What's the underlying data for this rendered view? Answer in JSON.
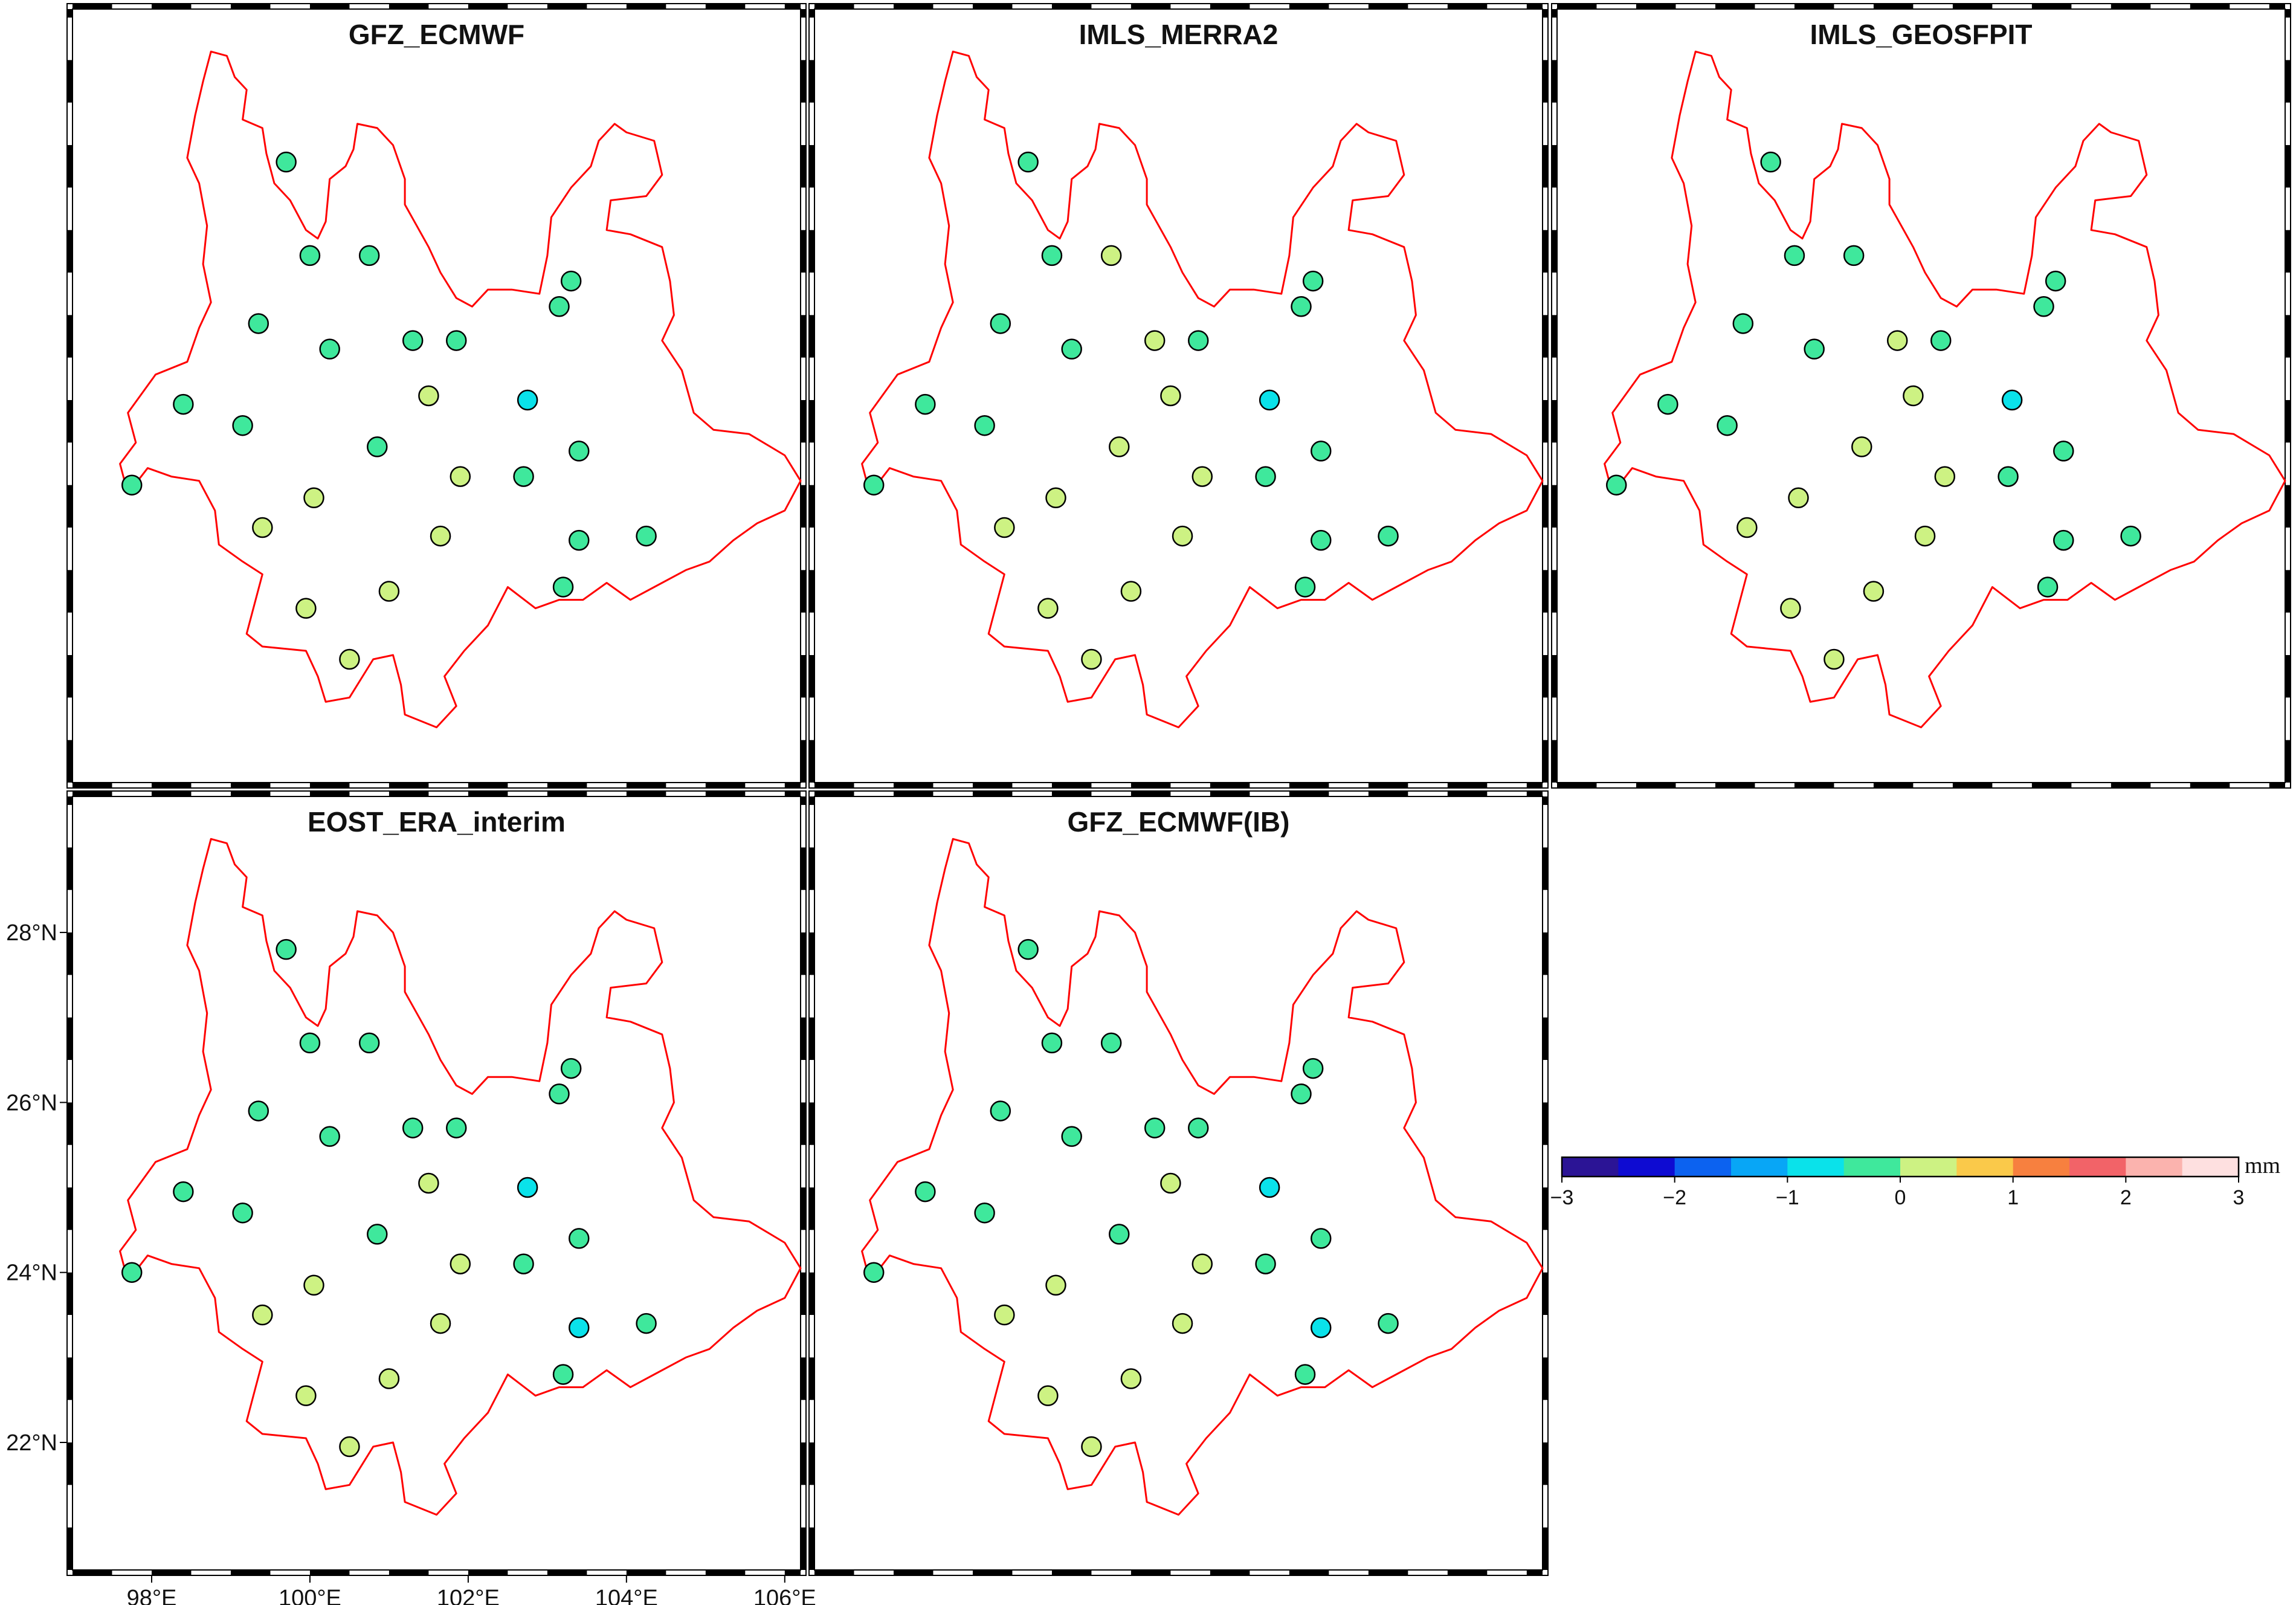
{
  "figure": {
    "panels": [
      {
        "title": "GFZ_ECMWF",
        "stations": [
          {
            "lon": 99.7,
            "lat": 27.8,
            "v": -0.2
          },
          {
            "lon": 100.0,
            "lat": 26.7,
            "v": -0.2
          },
          {
            "lon": 100.75,
            "lat": 26.7,
            "v": -0.2
          },
          {
            "lon": 103.3,
            "lat": 26.4,
            "v": -0.2
          },
          {
            "lon": 103.15,
            "lat": 26.1,
            "v": -0.2
          },
          {
            "lon": 99.35,
            "lat": 25.9,
            "v": -0.2
          },
          {
            "lon": 100.25,
            "lat": 25.6,
            "v": -0.2
          },
          {
            "lon": 101.3,
            "lat": 25.7,
            "v": -0.2
          },
          {
            "lon": 101.85,
            "lat": 25.7,
            "v": -0.2
          },
          {
            "lon": 101.5,
            "lat": 25.05,
            "v": 0.2
          },
          {
            "lon": 102.75,
            "lat": 25.0,
            "v": -0.7
          },
          {
            "lon": 98.4,
            "lat": 24.95,
            "v": -0.2
          },
          {
            "lon": 99.15,
            "lat": 24.7,
            "v": -0.2
          },
          {
            "lon": 100.85,
            "lat": 24.45,
            "v": -0.2
          },
          {
            "lon": 103.4,
            "lat": 24.4,
            "v": -0.2
          },
          {
            "lon": 101.9,
            "lat": 24.1,
            "v": 0.2
          },
          {
            "lon": 102.7,
            "lat": 24.1,
            "v": -0.2
          },
          {
            "lon": 97.75,
            "lat": 24.0,
            "v": -0.2
          },
          {
            "lon": 100.05,
            "lat": 23.85,
            "v": 0.2
          },
          {
            "lon": 99.4,
            "lat": 23.5,
            "v": 0.2
          },
          {
            "lon": 101.65,
            "lat": 23.4,
            "v": 0.2
          },
          {
            "lon": 103.4,
            "lat": 23.35,
            "v": -0.2
          },
          {
            "lon": 104.25,
            "lat": 23.4,
            "v": -0.2
          },
          {
            "lon": 103.2,
            "lat": 22.8,
            "v": -0.2
          },
          {
            "lon": 99.95,
            "lat": 22.55,
            "v": 0.2
          },
          {
            "lon": 101.0,
            "lat": 22.75,
            "v": 0.2
          },
          {
            "lon": 100.5,
            "lat": 21.95,
            "v": 0.2
          }
        ]
      },
      {
        "title": "IMLS_MERRA2",
        "stations": [
          {
            "lon": 99.7,
            "lat": 27.8,
            "v": -0.2
          },
          {
            "lon": 100.0,
            "lat": 26.7,
            "v": -0.2
          },
          {
            "lon": 100.75,
            "lat": 26.7,
            "v": 0.2
          },
          {
            "lon": 103.3,
            "lat": 26.4,
            "v": -0.2
          },
          {
            "lon": 103.15,
            "lat": 26.1,
            "v": -0.2
          },
          {
            "lon": 99.35,
            "lat": 25.9,
            "v": -0.2
          },
          {
            "lon": 100.25,
            "lat": 25.6,
            "v": -0.2
          },
          {
            "lon": 101.3,
            "lat": 25.7,
            "v": 0.2
          },
          {
            "lon": 101.85,
            "lat": 25.7,
            "v": -0.2
          },
          {
            "lon": 101.5,
            "lat": 25.05,
            "v": 0.2
          },
          {
            "lon": 102.75,
            "lat": 25.0,
            "v": -0.7
          },
          {
            "lon": 98.4,
            "lat": 24.95,
            "v": -0.2
          },
          {
            "lon": 99.15,
            "lat": 24.7,
            "v": -0.2
          },
          {
            "lon": 100.85,
            "lat": 24.45,
            "v": 0.2
          },
          {
            "lon": 103.4,
            "lat": 24.4,
            "v": -0.2
          },
          {
            "lon": 101.9,
            "lat": 24.1,
            "v": 0.2
          },
          {
            "lon": 102.7,
            "lat": 24.1,
            "v": -0.2
          },
          {
            "lon": 97.75,
            "lat": 24.0,
            "v": -0.2
          },
          {
            "lon": 100.05,
            "lat": 23.85,
            "v": 0.2
          },
          {
            "lon": 99.4,
            "lat": 23.5,
            "v": 0.2
          },
          {
            "lon": 101.65,
            "lat": 23.4,
            "v": 0.2
          },
          {
            "lon": 103.4,
            "lat": 23.35,
            "v": -0.2
          },
          {
            "lon": 104.25,
            "lat": 23.4,
            "v": -0.2
          },
          {
            "lon": 103.2,
            "lat": 22.8,
            "v": -0.2
          },
          {
            "lon": 99.95,
            "lat": 22.55,
            "v": 0.2
          },
          {
            "lon": 101.0,
            "lat": 22.75,
            "v": 0.2
          },
          {
            "lon": 100.5,
            "lat": 21.95,
            "v": 0.2
          }
        ]
      },
      {
        "title": "IMLS_GEOSFPIT",
        "stations": [
          {
            "lon": 99.7,
            "lat": 27.8,
            "v": -0.2
          },
          {
            "lon": 100.0,
            "lat": 26.7,
            "v": -0.2
          },
          {
            "lon": 100.75,
            "lat": 26.7,
            "v": -0.2
          },
          {
            "lon": 103.3,
            "lat": 26.4,
            "v": -0.2
          },
          {
            "lon": 103.15,
            "lat": 26.1,
            "v": -0.2
          },
          {
            "lon": 99.35,
            "lat": 25.9,
            "v": -0.2
          },
          {
            "lon": 100.25,
            "lat": 25.6,
            "v": -0.2
          },
          {
            "lon": 101.3,
            "lat": 25.7,
            "v": 0.2
          },
          {
            "lon": 101.85,
            "lat": 25.7,
            "v": -0.2
          },
          {
            "lon": 101.5,
            "lat": 25.05,
            "v": 0.2
          },
          {
            "lon": 102.75,
            "lat": 25.0,
            "v": -0.7
          },
          {
            "lon": 98.4,
            "lat": 24.95,
            "v": -0.2
          },
          {
            "lon": 99.15,
            "lat": 24.7,
            "v": -0.2
          },
          {
            "lon": 100.85,
            "lat": 24.45,
            "v": 0.2
          },
          {
            "lon": 103.4,
            "lat": 24.4,
            "v": -0.2
          },
          {
            "lon": 101.9,
            "lat": 24.1,
            "v": 0.2
          },
          {
            "lon": 102.7,
            "lat": 24.1,
            "v": -0.2
          },
          {
            "lon": 97.75,
            "lat": 24.0,
            "v": -0.2
          },
          {
            "lon": 100.05,
            "lat": 23.85,
            "v": 0.2
          },
          {
            "lon": 99.4,
            "lat": 23.5,
            "v": 0.2
          },
          {
            "lon": 101.65,
            "lat": 23.4,
            "v": 0.2
          },
          {
            "lon": 103.4,
            "lat": 23.35,
            "v": -0.2
          },
          {
            "lon": 104.25,
            "lat": 23.4,
            "v": -0.2
          },
          {
            "lon": 103.2,
            "lat": 22.8,
            "v": -0.2
          },
          {
            "lon": 99.95,
            "lat": 22.55,
            "v": 0.2
          },
          {
            "lon": 101.0,
            "lat": 22.75,
            "v": 0.2
          },
          {
            "lon": 100.5,
            "lat": 21.95,
            "v": 0.2
          }
        ]
      },
      {
        "title": "EOST_ERA_interim",
        "stations": [
          {
            "lon": 99.7,
            "lat": 27.8,
            "v": -0.2
          },
          {
            "lon": 100.0,
            "lat": 26.7,
            "v": -0.2
          },
          {
            "lon": 100.75,
            "lat": 26.7,
            "v": -0.2
          },
          {
            "lon": 103.3,
            "lat": 26.4,
            "v": -0.2
          },
          {
            "lon": 103.15,
            "lat": 26.1,
            "v": -0.2
          },
          {
            "lon": 99.35,
            "lat": 25.9,
            "v": -0.2
          },
          {
            "lon": 100.25,
            "lat": 25.6,
            "v": -0.2
          },
          {
            "lon": 101.3,
            "lat": 25.7,
            "v": -0.2
          },
          {
            "lon": 101.85,
            "lat": 25.7,
            "v": -0.2
          },
          {
            "lon": 101.5,
            "lat": 25.05,
            "v": 0.2
          },
          {
            "lon": 102.75,
            "lat": 25.0,
            "v": -0.7
          },
          {
            "lon": 98.4,
            "lat": 24.95,
            "v": -0.2
          },
          {
            "lon": 99.15,
            "lat": 24.7,
            "v": -0.2
          },
          {
            "lon": 100.85,
            "lat": 24.45,
            "v": -0.2
          },
          {
            "lon": 103.4,
            "lat": 24.4,
            "v": -0.2
          },
          {
            "lon": 101.9,
            "lat": 24.1,
            "v": 0.2
          },
          {
            "lon": 102.7,
            "lat": 24.1,
            "v": -0.2
          },
          {
            "lon": 97.75,
            "lat": 24.0,
            "v": -0.2
          },
          {
            "lon": 100.05,
            "lat": 23.85,
            "v": 0.2
          },
          {
            "lon": 99.4,
            "lat": 23.5,
            "v": 0.2
          },
          {
            "lon": 101.65,
            "lat": 23.4,
            "v": 0.2
          },
          {
            "lon": 103.4,
            "lat": 23.35,
            "v": -0.7
          },
          {
            "lon": 104.25,
            "lat": 23.4,
            "v": -0.2
          },
          {
            "lon": 103.2,
            "lat": 22.8,
            "v": -0.2
          },
          {
            "lon": 99.95,
            "lat": 22.55,
            "v": 0.2
          },
          {
            "lon": 101.0,
            "lat": 22.75,
            "v": 0.2
          },
          {
            "lon": 100.5,
            "lat": 21.95,
            "v": 0.2
          }
        ]
      },
      {
        "title": "GFZ_ECMWF(IB)",
        "stations": [
          {
            "lon": 99.7,
            "lat": 27.8,
            "v": -0.2
          },
          {
            "lon": 100.0,
            "lat": 26.7,
            "v": -0.2
          },
          {
            "lon": 100.75,
            "lat": 26.7,
            "v": -0.2
          },
          {
            "lon": 103.3,
            "lat": 26.4,
            "v": -0.2
          },
          {
            "lon": 103.15,
            "lat": 26.1,
            "v": -0.2
          },
          {
            "lon": 99.35,
            "lat": 25.9,
            "v": -0.2
          },
          {
            "lon": 100.25,
            "lat": 25.6,
            "v": -0.2
          },
          {
            "lon": 101.3,
            "lat": 25.7,
            "v": -0.2
          },
          {
            "lon": 101.85,
            "lat": 25.7,
            "v": -0.2
          },
          {
            "lon": 101.5,
            "lat": 25.05,
            "v": 0.2
          },
          {
            "lon": 102.75,
            "lat": 25.0,
            "v": -0.7
          },
          {
            "lon": 98.4,
            "lat": 24.95,
            "v": -0.2
          },
          {
            "lon": 99.15,
            "lat": 24.7,
            "v": -0.2
          },
          {
            "lon": 100.85,
            "lat": 24.45,
            "v": -0.2
          },
          {
            "lon": 103.4,
            "lat": 24.4,
            "v": -0.2
          },
          {
            "lon": 101.9,
            "lat": 24.1,
            "v": 0.2
          },
          {
            "lon": 102.7,
            "lat": 24.1,
            "v": -0.2
          },
          {
            "lon": 97.75,
            "lat": 24.0,
            "v": -0.2
          },
          {
            "lon": 100.05,
            "lat": 23.85,
            "v": 0.2
          },
          {
            "lon": 99.4,
            "lat": 23.5,
            "v": 0.2
          },
          {
            "lon": 101.65,
            "lat": 23.4,
            "v": 0.2
          },
          {
            "lon": 103.4,
            "lat": 23.35,
            "v": -0.7
          },
          {
            "lon": 104.25,
            "lat": 23.4,
            "v": -0.2
          },
          {
            "lon": 103.2,
            "lat": 22.8,
            "v": -0.2
          },
          {
            "lon": 99.95,
            "lat": 22.55,
            "v": 0.2
          },
          {
            "lon": 101.0,
            "lat": 22.75,
            "v": 0.2
          },
          {
            "lon": 100.5,
            "lat": 21.95,
            "v": 0.2
          }
        ]
      }
    ],
    "lon_range": [
      97.0,
      106.2
    ],
    "lat_range": [
      20.5,
      29.6
    ],
    "x_ticks": [
      98,
      100,
      102,
      104,
      106
    ],
    "x_tick_labels": [
      "98°E",
      "100°E",
      "102°E",
      "104°E",
      "106°E"
    ],
    "y_ticks": [
      22,
      24,
      26,
      28
    ],
    "y_tick_labels": [
      "22°N",
      "24°N",
      "26°N",
      "28°N"
    ],
    "boundary_color": "#ff0000",
    "boundary_lonlat": [
      [
        98.75,
        29.1
      ],
      [
        98.95,
        29.05
      ],
      [
        99.05,
        28.8
      ],
      [
        99.2,
        28.65
      ],
      [
        99.15,
        28.3
      ],
      [
        99.4,
        28.2
      ],
      [
        99.45,
        27.9
      ],
      [
        99.55,
        27.55
      ],
      [
        99.75,
        27.35
      ],
      [
        99.95,
        27.0
      ],
      [
        100.1,
        26.9
      ],
      [
        100.2,
        27.1
      ],
      [
        100.25,
        27.6
      ],
      [
        100.45,
        27.75
      ],
      [
        100.55,
        27.95
      ],
      [
        100.6,
        28.25
      ],
      [
        100.85,
        28.2
      ],
      [
        101.05,
        28.0
      ],
      [
        101.2,
        27.6
      ],
      [
        101.2,
        27.3
      ],
      [
        101.35,
        27.05
      ],
      [
        101.5,
        26.8
      ],
      [
        101.65,
        26.5
      ],
      [
        101.85,
        26.2
      ],
      [
        102.05,
        26.1
      ],
      [
        102.25,
        26.3
      ],
      [
        102.55,
        26.3
      ],
      [
        102.9,
        26.25
      ],
      [
        103.0,
        26.7
      ],
      [
        103.05,
        27.15
      ],
      [
        103.3,
        27.5
      ],
      [
        103.55,
        27.75
      ],
      [
        103.65,
        28.05
      ],
      [
        103.85,
        28.25
      ],
      [
        104.0,
        28.15
      ],
      [
        104.35,
        28.05
      ],
      [
        104.45,
        27.65
      ],
      [
        104.25,
        27.4
      ],
      [
        103.8,
        27.35
      ],
      [
        103.75,
        27.0
      ],
      [
        104.05,
        26.95
      ],
      [
        104.45,
        26.8
      ],
      [
        104.55,
        26.4
      ],
      [
        104.6,
        26.0
      ],
      [
        104.45,
        25.7
      ],
      [
        104.7,
        25.35
      ],
      [
        104.85,
        24.85
      ],
      [
        105.1,
        24.65
      ],
      [
        105.55,
        24.6
      ],
      [
        106.0,
        24.35
      ],
      [
        106.2,
        24.05
      ],
      [
        106.0,
        23.7
      ],
      [
        105.65,
        23.55
      ],
      [
        105.35,
        23.35
      ],
      [
        105.05,
        23.1
      ],
      [
        104.75,
        23.0
      ],
      [
        104.35,
        22.8
      ],
      [
        104.05,
        22.65
      ],
      [
        103.75,
        22.85
      ],
      [
        103.45,
        22.65
      ],
      [
        103.15,
        22.65
      ],
      [
        102.85,
        22.55
      ],
      [
        102.5,
        22.8
      ],
      [
        102.25,
        22.35
      ],
      [
        101.95,
        22.05
      ],
      [
        101.7,
        21.75
      ],
      [
        101.85,
        21.4
      ],
      [
        101.6,
        21.15
      ],
      [
        101.2,
        21.3
      ],
      [
        101.15,
        21.65
      ],
      [
        101.05,
        22.0
      ],
      [
        100.8,
        21.95
      ],
      [
        100.5,
        21.5
      ],
      [
        100.2,
        21.45
      ],
      [
        100.1,
        21.75
      ],
      [
        99.95,
        22.05
      ],
      [
        99.4,
        22.1
      ],
      [
        99.2,
        22.25
      ],
      [
        99.3,
        22.6
      ],
      [
        99.4,
        22.95
      ],
      [
        99.15,
        23.1
      ],
      [
        98.85,
        23.3
      ],
      [
        98.8,
        23.7
      ],
      [
        98.6,
        24.05
      ],
      [
        98.25,
        24.1
      ],
      [
        97.95,
        24.2
      ],
      [
        97.7,
        23.9
      ],
      [
        97.6,
        24.25
      ],
      [
        97.8,
        24.5
      ],
      [
        97.7,
        24.85
      ],
      [
        98.05,
        25.3
      ],
      [
        98.45,
        25.45
      ],
      [
        98.6,
        25.85
      ],
      [
        98.75,
        26.15
      ],
      [
        98.65,
        26.6
      ],
      [
        98.7,
        27.05
      ],
      [
        98.6,
        27.55
      ],
      [
        98.45,
        27.85
      ],
      [
        98.55,
        28.35
      ],
      [
        98.65,
        28.75
      ]
    ],
    "colorbar": {
      "unit": "mm",
      "tick_labels": [
        "−3",
        "−2",
        "−1",
        "0",
        "1",
        "2",
        "3"
      ],
      "bounds": [
        -3,
        -2.5,
        -2,
        -1.5,
        -1,
        -0.5,
        0,
        0.5,
        1,
        1.5,
        2,
        2.5,
        3
      ],
      "colors": [
        "#2b1495",
        "#0e0bd2",
        "#0c62f0",
        "#08a6f6",
        "#0ae2ea",
        "#3fe89c",
        "#cdf283",
        "#fac94a",
        "#f7803f",
        "#f26368",
        "#fbb3ae",
        "#fee0e0"
      ]
    }
  }
}
